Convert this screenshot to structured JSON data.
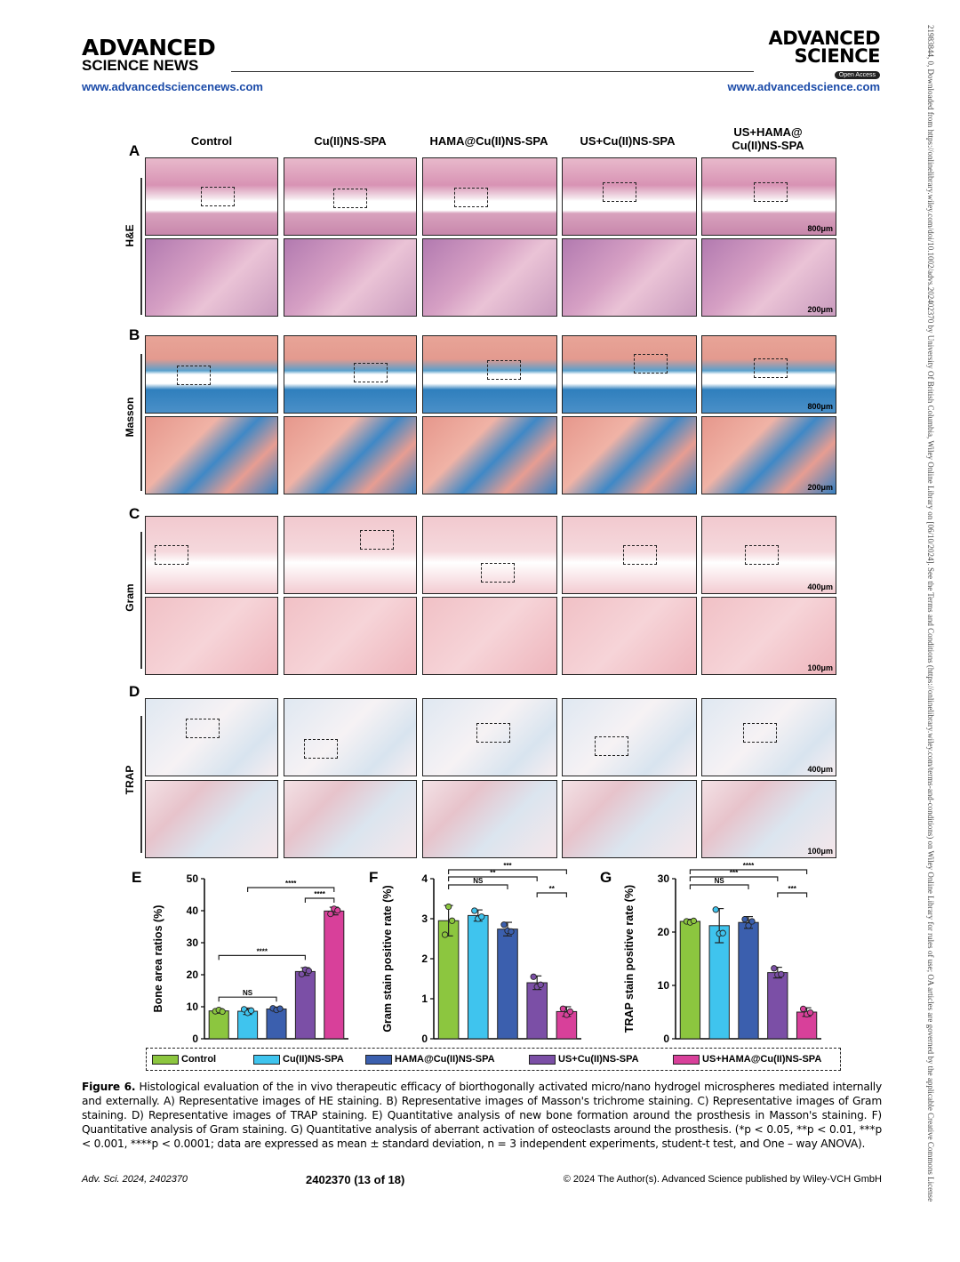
{
  "header": {
    "journal_left_line1": "ADVANCED",
    "journal_left_line2": "SCIENCE NEWS",
    "url_left": "www.advancedsciencenews.com",
    "journal_right_line1": "ADVANCED",
    "journal_right_line2": "SCIENCE",
    "open_access": "Open Access",
    "url_right": "www.advancedscience.com"
  },
  "sidebar": {
    "text": "21983844, 0, Downloaded from https://onlinelibrary.wiley.com/doi/10.1002/advs.202402370 by University Of British Columbia, Wiley Online Library on [06/10/2024]. See the Terms and Conditions (https://onlinelibrary.wiley.com/terms-and-conditions) on Wiley Online Library for rules of use; OA articles are governed by the applicable Creative Commons License"
  },
  "figure": {
    "columns": [
      "Control",
      "Cu(II)NS-SPA",
      "HAMA@Cu(II)NS-SPA",
      "US+Cu(II)NS-SPA",
      "US+HAMA@\nCu(II)NS-SPA"
    ],
    "columns_last_l1": "US+HAMA@",
    "columns_last_l2": "Cu(II)NS-SPA",
    "panels": [
      {
        "letter": "A",
        "stain": "H&E",
        "scale_top": "800μm",
        "scale_bottom": "200μm"
      },
      {
        "letter": "B",
        "stain": "Masson",
        "scale_top": "800μm",
        "scale_bottom": "200μm"
      },
      {
        "letter": "C",
        "stain": "Gram",
        "scale_top": "400μm",
        "scale_bottom": "100μm"
      },
      {
        "letter": "D",
        "stain": "TRAP",
        "scale_top": "400μm",
        "scale_bottom": "100μm"
      }
    ],
    "legend": [
      "Control",
      "Cu(II)NS-SPA",
      "HAMA@Cu(II)NS-SPA",
      "US+Cu(II)NS-SPA",
      "US+HAMA@Cu(II)NS-SPA"
    ],
    "colors": [
      "#8cc63f",
      "#3fc4ee",
      "#3b5fae",
      "#7b4fa6",
      "#d8409a"
    ]
  },
  "chart_data": [
    {
      "type": "bar",
      "panel": "E",
      "categories": [
        "Control",
        "Cu(II)NS-SPA",
        "HAMA@Cu(II)NS-SPA",
        "US+Cu(II)NS-SPA",
        "US+HAMA@Cu(II)NS-SPA"
      ],
      "values": [
        8.7,
        8.6,
        9.3,
        21.0,
        39.9
      ],
      "errors": [
        0.7,
        1.0,
        0.6,
        1.2,
        1.2
      ],
      "points": [
        [
          8.6,
          9.0,
          8.5
        ],
        [
          9.2,
          8.1,
          8.8
        ],
        [
          9.5,
          9.0,
          9.4
        ],
        [
          20.2,
          21.6,
          21.2
        ],
        [
          39.0,
          40.6,
          40.1
        ]
      ],
      "ylabel": "Bone area ratios (%)",
      "ylim": [
        0,
        50
      ],
      "yticks": [
        "0",
        "10",
        "20",
        "30",
        "40",
        "50"
      ],
      "sig": [
        "****",
        "****",
        "NS",
        "****"
      ]
    },
    {
      "type": "bar",
      "panel": "F",
      "categories": [
        "Control",
        "Cu(II)NS-SPA",
        "HAMA@Cu(II)NS-SPA",
        "US+Cu(II)NS-SPA",
        "US+HAMA@Cu(II)NS-SPA"
      ],
      "values": [
        2.95,
        3.08,
        2.74,
        1.4,
        0.68
      ],
      "errors": [
        0.38,
        0.14,
        0.17,
        0.17,
        0.12
      ],
      "points": [
        [
          2.6,
          3.3,
          2.95
        ],
        [
          3.2,
          3.0,
          3.05
        ],
        [
          2.85,
          2.7,
          2.68
        ],
        [
          1.55,
          1.3,
          1.35
        ],
        [
          0.75,
          0.6,
          0.68
        ]
      ],
      "ylabel": "Gram stain positive rate (%)",
      "ylim": [
        0,
        4
      ],
      "yticks": [
        "0",
        "1",
        "2",
        "3",
        "4"
      ],
      "sig": [
        "***",
        "**",
        "NS",
        "**"
      ]
    },
    {
      "type": "bar",
      "panel": "G",
      "categories": [
        "Control",
        "Cu(II)NS-SPA",
        "HAMA@Cu(II)NS-SPA",
        "US+Cu(II)NS-SPA",
        "US+HAMA@Cu(II)NS-SPA"
      ],
      "values": [
        22.0,
        21.2,
        21.8,
        12.4,
        5.0
      ],
      "errors": [
        0.4,
        3.2,
        1.1,
        1.0,
        0.8
      ],
      "points": [
        [
          22.0,
          21.8,
          22.1
        ],
        [
          24.2,
          19.7,
          19.8
        ],
        [
          22.4,
          21.2,
          22.0
        ],
        [
          13.2,
          12.0,
          12.1
        ],
        [
          5.6,
          4.6,
          4.9
        ]
      ],
      "ylabel": "TRAP stain positive rate (%)",
      "ylim": [
        0,
        30
      ],
      "yticks": [
        "0",
        "10",
        "20",
        "30"
      ],
      "sig": [
        "****",
        "***",
        "NS",
        "***"
      ]
    }
  ],
  "caption": {
    "label": "Figure 6.",
    "text": " Histological evaluation of the in vivo therapeutic efficacy of biorthogonally activated micro/nano hydrogel microspheres mediated internally and externally. A) Representative images of HE staining. B) Representative images of Masson's trichrome staining. C) Representative images of Gram staining. D) Representative images of TRAP staining. E) Quantitative analysis of new bone formation around the prosthesis in Masson's staining. F) Quantitative analysis of Gram staining. G) Quantitative analysis of aberrant activation of osteoclasts around the prosthesis. (*p < 0.05, **p < 0.01, ***p < 0.001, ****p < 0.0001; data are expressed as mean ± standard deviation, n = 3 independent experiments, student-t test, and One – way ANOVA)."
  },
  "footer": {
    "left": "Adv. Sci. 2024, 2402370",
    "middle": "2402370 (13 of 18)",
    "right": "© 2024 The Author(s). Advanced Science published by Wiley-VCH GmbH"
  }
}
